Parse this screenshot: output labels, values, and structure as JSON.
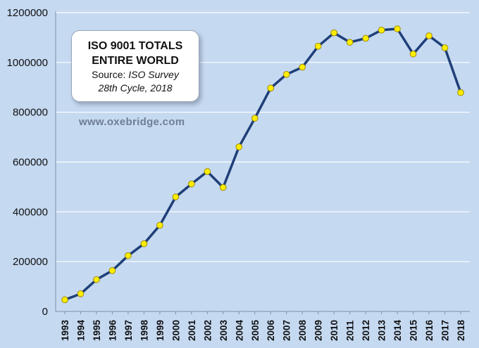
{
  "title_box": {
    "line1": "ISO 9001 TOTALS",
    "line2": "ENTIRE WORLD",
    "source_label": "Source: ",
    "source_name": "ISO Survey",
    "cycle": "28th Cycle, 2018"
  },
  "watermark": "www.oxebridge.com",
  "colors": {
    "background": "#c5d9f1",
    "line": "#1f3f78",
    "marker_fill": "#ffee00",
    "marker_stroke": "#a08a00",
    "grid": "#ffffff"
  },
  "chart_data": {
    "type": "line",
    "title": "ISO 9001 TOTALS ENTIRE WORLD",
    "xlabel": "",
    "ylabel": "",
    "ylim": [
      0,
      1200000
    ],
    "yticks": [
      0,
      200000,
      400000,
      600000,
      800000,
      1000000,
      1200000
    ],
    "ytick_labels": [
      "0",
      "200000",
      "400000",
      "600000",
      "800000",
      "1000000",
      "1200000"
    ],
    "grid": true,
    "legend": "none",
    "x": [
      "1993",
      "1994",
      "1995",
      "1996",
      "1997",
      "1998",
      "1999",
      "2000",
      "2001",
      "2002",
      "2003",
      "2004",
      "2005",
      "2006",
      "2007",
      "2008",
      "2009",
      "2010",
      "2011",
      "2012",
      "2013",
      "2014",
      "2015",
      "2016",
      "2017",
      "2018"
    ],
    "series": [
      {
        "values": [
          47000,
          71000,
          128000,
          164000,
          224000,
          272000,
          346000,
          460000,
          512000,
          562000,
          498000,
          661000,
          776000,
          897000,
          952000,
          981000,
          1065000,
          1119000,
          1081000,
          1097000,
          1130000,
          1135000,
          1034000,
          1107000,
          1059000,
          879000
        ]
      }
    ]
  }
}
